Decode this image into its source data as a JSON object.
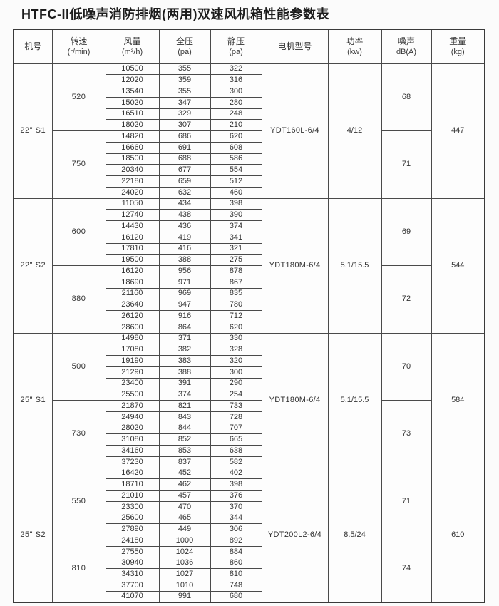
{
  "title": "HTFC-II低噪声消防排烟(两用)双速风机箱性能参数表",
  "colors": {
    "text": "#333333",
    "border": "#4a4a4a",
    "background": "#fbfbfb"
  },
  "table": {
    "headers": [
      {
        "line1": "机号",
        "line2": ""
      },
      {
        "line1": "转速",
        "line2": "(r/min)"
      },
      {
        "line1": "风量",
        "line2": "(m³/h)"
      },
      {
        "line1": "全压",
        "line2": "(pa)"
      },
      {
        "line1": "静压",
        "line2": "(pa)"
      },
      {
        "line1": "电机型号",
        "line2": ""
      },
      {
        "line1": "功率",
        "line2": "(kw)"
      },
      {
        "line1": "噪声",
        "line2": "dB(A)"
      },
      {
        "line1": "重量",
        "line2": "(kg)"
      }
    ],
    "sections": [
      {
        "model": "22\" S1",
        "motor": "YDT160L-6/4",
        "power": "4/12",
        "weight": "447",
        "speed_groups": [
          {
            "speed": "520",
            "noise": "68",
            "rows": [
              [
                "10500",
                "355",
                "322"
              ],
              [
                "12020",
                "359",
                "316"
              ],
              [
                "13540",
                "355",
                "300"
              ],
              [
                "15020",
                "347",
                "280"
              ],
              [
                "16510",
                "329",
                "248"
              ],
              [
                "18020",
                "307",
                "210"
              ]
            ]
          },
          {
            "speed": "750",
            "noise": "71",
            "rows": [
              [
                "14820",
                "686",
                "620"
              ],
              [
                "16660",
                "691",
                "608"
              ],
              [
                "18500",
                "688",
                "586"
              ],
              [
                "20340",
                "677",
                "554"
              ],
              [
                "22180",
                "659",
                "512"
              ],
              [
                "24020",
                "632",
                "460"
              ]
            ]
          }
        ]
      },
      {
        "model": "22\" S2",
        "motor": "YDT180M-6/4",
        "power": "5.1/15.5",
        "weight": "544",
        "speed_groups": [
          {
            "speed": "600",
            "noise": "69",
            "rows": [
              [
                "11050",
                "434",
                "398"
              ],
              [
                "12740",
                "438",
                "390"
              ],
              [
                "14430",
                "436",
                "374"
              ],
              [
                "16120",
                "419",
                "341"
              ],
              [
                "17810",
                "416",
                "321"
              ],
              [
                "19500",
                "388",
                "275"
              ]
            ]
          },
          {
            "speed": "880",
            "noise": "72",
            "rows": [
              [
                "16120",
                "956",
                "878"
              ],
              [
                "18690",
                "971",
                "867"
              ],
              [
                "21160",
                "969",
                "835"
              ],
              [
                "23640",
                "947",
                "780"
              ],
              [
                "26120",
                "916",
                "712"
              ],
              [
                "28600",
                "864",
                "620"
              ]
            ]
          }
        ]
      },
      {
        "model": "25\" S1",
        "motor": "YDT180M-6/4",
        "power": "5.1/15.5",
        "weight": "584",
        "speed_groups": [
          {
            "speed": "500",
            "noise": "70",
            "rows": [
              [
                "14980",
                "371",
                "330"
              ],
              [
                "17080",
                "382",
                "328"
              ],
              [
                "19190",
                "383",
                "320"
              ],
              [
                "21290",
                "388",
                "300"
              ],
              [
                "23400",
                "391",
                "290"
              ],
              [
                "25500",
                "374",
                "254"
              ]
            ]
          },
          {
            "speed": "730",
            "noise": "73",
            "rows": [
              [
                "21870",
                "821",
                "733"
              ],
              [
                "24940",
                "843",
                "728"
              ],
              [
                "28020",
                "844",
                "707"
              ],
              [
                "31080",
                "852",
                "665"
              ],
              [
                "34160",
                "853",
                "638"
              ],
              [
                "37230",
                "837",
                "582"
              ]
            ]
          }
        ]
      },
      {
        "model": "25\" S2",
        "motor": "YDT200L2-6/4",
        "power": "8.5/24",
        "weight": "610",
        "speed_groups": [
          {
            "speed": "550",
            "noise": "71",
            "rows": [
              [
                "16420",
                "452",
                "402"
              ],
              [
                "18710",
                "462",
                "398"
              ],
              [
                "21010",
                "457",
                "376"
              ],
              [
                "23300",
                "470",
                "370"
              ],
              [
                "25600",
                "465",
                "344"
              ],
              [
                "27890",
                "449",
                "306"
              ]
            ]
          },
          {
            "speed": "810",
            "noise": "74",
            "rows": [
              [
                "24180",
                "1000",
                "892"
              ],
              [
                "27550",
                "1024",
                "884"
              ],
              [
                "30940",
                "1036",
                "860"
              ],
              [
                "34310",
                "1027",
                "810"
              ],
              [
                "37700",
                "1010",
                "748"
              ],
              [
                "41070",
                "991",
                "680"
              ]
            ]
          }
        ]
      }
    ]
  }
}
